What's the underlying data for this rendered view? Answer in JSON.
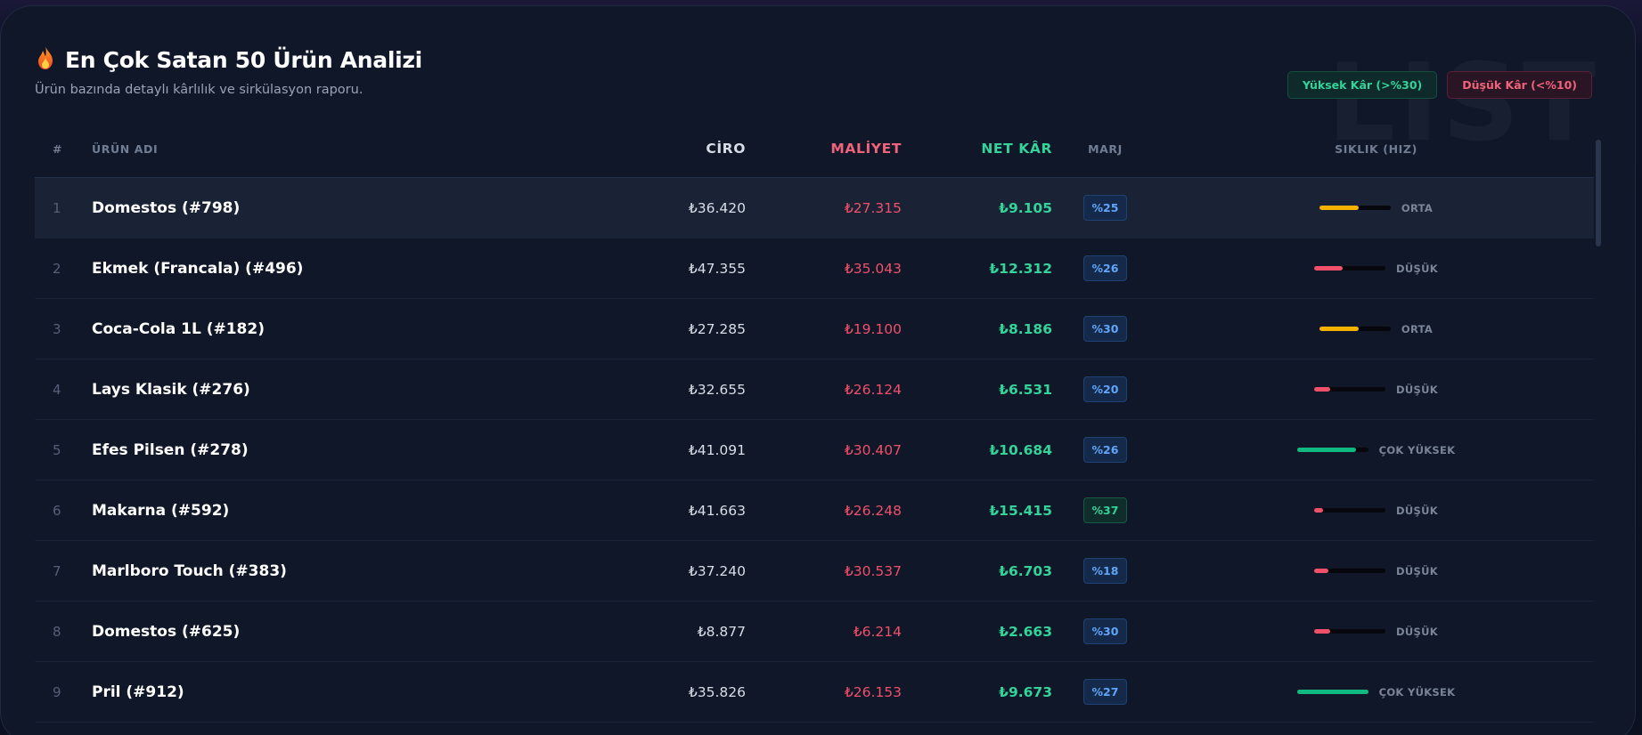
{
  "header": {
    "icon": "fire-icon",
    "title": "En Çok Satan 50 Ürün Analizi",
    "subtitle": "Ürün bazında detaylı kârlılık ve sirkülasyon raporu."
  },
  "watermark": "LIST",
  "legend": {
    "high_label": "Yüksek Kâr (>%30)",
    "low_label": "Düşük Kâr (<%10)"
  },
  "colors": {
    "high": "#34d399",
    "low": "#f0506a",
    "medium": "#f5b300",
    "margin_blue": "#60a5fa"
  },
  "columns": {
    "idx": "#",
    "name": "ÜRÜN ADI",
    "ciro": "CİRO",
    "cost": "MALİYET",
    "net": "NET KÂR",
    "marj": "MARJ",
    "speed": "SIKLIK (HIZ)"
  },
  "rows": [
    {
      "idx": "1",
      "name": "Domestos (#798)",
      "ciro": "₺36.420",
      "cost": "₺27.315",
      "net": "₺9.105",
      "marj": "%25",
      "marj_style": "blue",
      "speed_level": 0.55,
      "speed_color": "#f5b300",
      "speed_label": "ORTA",
      "active": true
    },
    {
      "idx": "2",
      "name": "Ekmek (Francala) (#496)",
      "ciro": "₺47.355",
      "cost": "₺35.043",
      "net": "₺12.312",
      "marj": "%26",
      "marj_style": "blue",
      "speed_level": 0.4,
      "speed_color": "#f0506a",
      "speed_label": "DÜŞÜK"
    },
    {
      "idx": "3",
      "name": "Coca-Cola 1L (#182)",
      "ciro": "₺27.285",
      "cost": "₺19.100",
      "net": "₺8.186",
      "marj": "%30",
      "marj_style": "blue",
      "speed_level": 0.55,
      "speed_color": "#f5b300",
      "speed_label": "ORTA"
    },
    {
      "idx": "4",
      "name": "Lays Klasik (#276)",
      "ciro": "₺32.655",
      "cost": "₺26.124",
      "net": "₺6.531",
      "marj": "%20",
      "marj_style": "blue",
      "speed_level": 0.22,
      "speed_color": "#f0506a",
      "speed_label": "DÜŞÜK"
    },
    {
      "idx": "5",
      "name": "Efes Pilsen (#278)",
      "ciro": "₺41.091",
      "cost": "₺30.407",
      "net": "₺10.684",
      "marj": "%26",
      "marj_style": "blue",
      "speed_level": 0.82,
      "speed_color": "#10b981",
      "speed_label": "ÇOK YÜKSEK"
    },
    {
      "idx": "6",
      "name": "Makarna (#592)",
      "ciro": "₺41.663",
      "cost": "₺26.248",
      "net": "₺15.415",
      "marj": "%37",
      "marj_style": "green",
      "speed_level": 0.12,
      "speed_color": "#f0506a",
      "speed_label": "DÜŞÜK"
    },
    {
      "idx": "7",
      "name": "Marlboro Touch (#383)",
      "ciro": "₺37.240",
      "cost": "₺30.537",
      "net": "₺6.703",
      "marj": "%18",
      "marj_style": "blue",
      "speed_level": 0.2,
      "speed_color": "#f0506a",
      "speed_label": "DÜŞÜK"
    },
    {
      "idx": "8",
      "name": "Domestos (#625)",
      "ciro": "₺8.877",
      "cost": "₺6.214",
      "net": "₺2.663",
      "marj": "%30",
      "marj_style": "blue",
      "speed_level": 0.22,
      "speed_color": "#f0506a",
      "speed_label": "DÜŞÜK"
    },
    {
      "idx": "9",
      "name": "Pril (#912)",
      "ciro": "₺35.826",
      "cost": "₺26.153",
      "net": "₺9.673",
      "marj": "%27",
      "marj_style": "blue",
      "speed_level": 1.0,
      "speed_color": "#10b981",
      "speed_label": "ÇOK YÜKSEK"
    }
  ]
}
